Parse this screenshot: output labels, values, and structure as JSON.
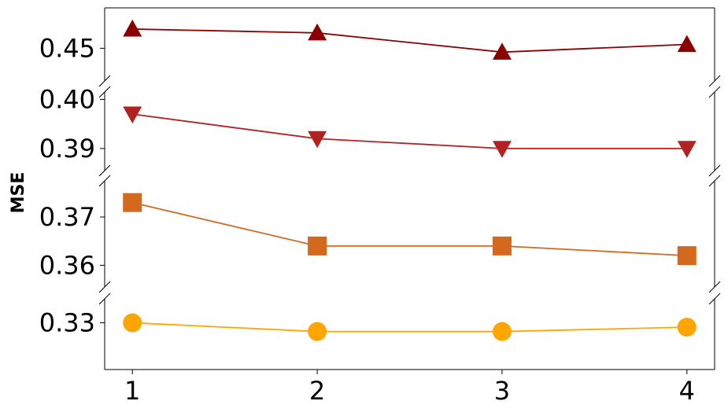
{
  "chart_data": {
    "type": "line",
    "layout": "broken-y-axis",
    "x": [
      1,
      2,
      3,
      4
    ],
    "xticks": [
      "1",
      "2",
      "3",
      "4"
    ],
    "xlim": [
      0.85,
      4.15
    ],
    "ylabel": "MSE",
    "grid": false,
    "legend": "none",
    "panels": [
      {
        "ylim": [
          0.4415,
          0.4605
        ],
        "yticks": [
          {
            "value": 0.45,
            "label": "0.45"
          }
        ],
        "series": [
          {
            "values": [
              0.455,
              0.454,
              0.449,
              0.451
            ],
            "color": "#8b0000",
            "marker": "triangle-up"
          }
        ]
      },
      {
        "ylim": [
          0.3855,
          0.4015
        ],
        "yticks": [
          {
            "value": 0.4,
            "label": "0.40"
          },
          {
            "value": 0.39,
            "label": "0.39"
          }
        ],
        "series": [
          {
            "values": [
              0.397,
              0.392,
              0.39,
              0.39
            ],
            "color": "#b22222",
            "marker": "triangle-down"
          }
        ]
      },
      {
        "ylim": [
          0.3555,
          0.3775
        ],
        "yticks": [
          {
            "value": 0.37,
            "label": "0.37"
          },
          {
            "value": 0.36,
            "label": "0.36"
          }
        ],
        "series": [
          {
            "values": [
              0.373,
              0.364,
              0.364,
              0.362
            ],
            "color": "#d2691e",
            "marker": "square"
          }
        ]
      },
      {
        "ylim": [
          0.3193,
          0.3355
        ],
        "yticks": [
          {
            "value": 0.33,
            "label": "0.33"
          }
        ],
        "series": [
          {
            "values": [
              0.33,
              0.328,
              0.328,
              0.329
            ],
            "color": "#ffa500",
            "marker": "circle"
          }
        ]
      }
    ]
  }
}
